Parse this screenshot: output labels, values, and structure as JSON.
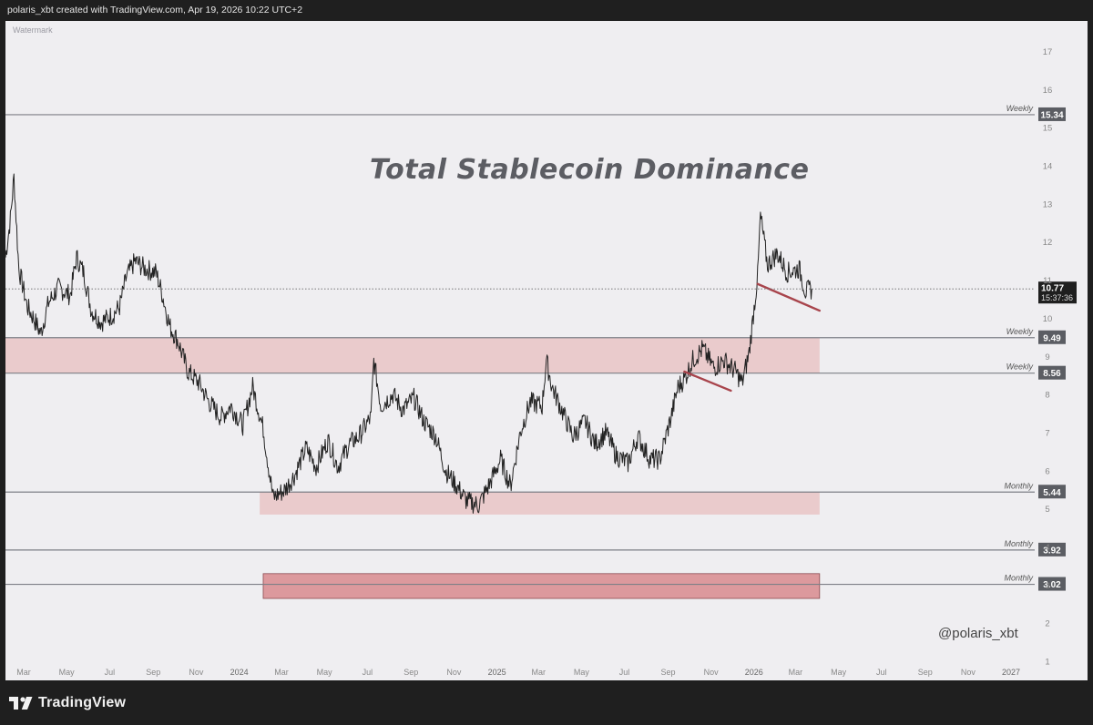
{
  "header": {
    "caption": "polaris_xbt created with TradingView.com, Apr 19, 2026 10:22 UTC+2"
  },
  "watermark": "Watermark",
  "handle": "@polaris_xbt",
  "footer": {
    "brand": "TradingView"
  },
  "colors": {
    "background": "#efeef1",
    "zone_light": "#e9c4c6",
    "zone_strong": "#d98f93",
    "trendline": "#a8444c",
    "level_line": "#7d7f86",
    "price_line": "#222222"
  },
  "chart_data": {
    "type": "line",
    "title": "Total Stablecoin Dominance",
    "x_axis": {
      "start": "2023-03-01",
      "end": "2027-02-01",
      "tick_labels": [
        "Mar",
        "May",
        "Jul",
        "Sep",
        "Nov",
        "2024",
        "Mar",
        "May",
        "Jul",
        "Sep",
        "Nov",
        "2025",
        "Mar",
        "May",
        "Jul",
        "Sep",
        "Nov",
        "2026",
        "Mar",
        "May",
        "Jul",
        "Sep",
        "Nov",
        "2027"
      ],
      "tick_dates": [
        "2023-03-01",
        "2023-05-01",
        "2023-07-01",
        "2023-09-01",
        "2023-11-01",
        "2024-01-01",
        "2024-03-01",
        "2024-05-01",
        "2024-07-01",
        "2024-09-01",
        "2024-11-01",
        "2025-01-01",
        "2025-03-01",
        "2025-05-01",
        "2025-07-01",
        "2025-09-01",
        "2025-11-01",
        "2026-01-01",
        "2026-03-01",
        "2026-05-01",
        "2026-07-01",
        "2026-09-01",
        "2026-11-01",
        "2027-01-01"
      ]
    },
    "y_axis": {
      "min": 0.5,
      "max": 17.8,
      "ticks": [
        1,
        2,
        3,
        4,
        5,
        6,
        7,
        8,
        9,
        10,
        11,
        12,
        13,
        14,
        15,
        16,
        17
      ]
    },
    "series": [
      {
        "x": [
          "2023-03-01",
          "2023-03-08",
          "2023-03-13",
          "2023-03-20",
          "2023-04-01",
          "2023-04-10",
          "2023-04-20",
          "2023-05-01",
          "2023-05-15",
          "2023-06-01",
          "2023-06-10",
          "2023-06-20",
          "2023-07-01",
          "2023-07-15",
          "2023-08-01",
          "2023-08-10",
          "2023-08-20",
          "2023-09-01",
          "2023-09-15",
          "2023-10-01",
          "2023-10-10",
          "2023-10-20",
          "2023-11-01",
          "2023-11-15",
          "2023-12-01",
          "2023-12-15",
          "2024-01-01",
          "2024-01-15",
          "2024-02-01",
          "2024-02-15",
          "2024-03-01",
          "2024-03-07",
          "2024-03-15",
          "2024-04-01",
          "2024-04-15",
          "2024-05-01",
          "2024-05-15",
          "2024-06-01",
          "2024-06-15",
          "2024-07-01",
          "2024-07-15",
          "2024-08-01",
          "2024-08-05",
          "2024-08-15",
          "2024-09-01",
          "2024-09-15",
          "2024-10-01",
          "2024-10-15",
          "2024-11-01",
          "2024-11-15",
          "2024-12-01",
          "2024-12-15",
          "2025-01-01",
          "2025-01-15",
          "2025-02-01",
          "2025-02-15",
          "2025-03-01",
          "2025-03-15",
          "2025-04-01",
          "2025-04-07",
          "2025-04-15",
          "2025-05-01",
          "2025-05-15",
          "2025-06-01",
          "2025-06-15",
          "2025-07-01",
          "2025-07-15",
          "2025-08-01",
          "2025-08-15",
          "2025-09-01",
          "2025-09-15",
          "2025-10-01",
          "2025-10-11",
          "2025-10-20",
          "2025-11-01",
          "2025-11-15",
          "2025-12-01",
          "2025-12-15",
          "2026-01-01",
          "2026-01-10",
          "2026-01-20",
          "2026-02-01",
          "2026-02-05",
          "2026-02-15",
          "2026-03-01",
          "2026-03-15",
          "2026-04-01",
          "2026-04-10",
          "2026-04-19"
        ],
        "values": [
          11.6,
          12.6,
          13.7,
          11.3,
          10.3,
          10.0,
          9.6,
          10.4,
          10.8,
          10.6,
          11.6,
          11.2,
          10.2,
          9.9,
          10.1,
          10.3,
          11.1,
          11.5,
          11.3,
          11.2,
          10.6,
          9.8,
          9.4,
          8.6,
          8.3,
          7.8,
          7.4,
          7.7,
          7.2,
          8.2,
          7.1,
          6.3,
          5.3,
          5.5,
          5.9,
          6.6,
          6.1,
          6.8,
          6.1,
          6.7,
          6.9,
          7.4,
          8.9,
          7.7,
          8.0,
          7.6,
          7.9,
          7.3,
          6.9,
          6.0,
          5.6,
          5.2,
          5.1,
          5.6,
          6.3,
          5.6,
          7.0,
          7.8,
          7.7,
          8.9,
          8.2,
          7.5,
          6.9,
          7.3,
          6.7,
          7.0,
          6.4,
          6.2,
          6.9,
          6.3,
          6.3,
          7.4,
          8.2,
          8.4,
          8.9,
          9.2,
          8.7,
          8.9,
          8.6,
          8.3,
          9.1,
          11.1,
          12.7,
          11.4,
          11.7,
          11.2,
          11.3,
          10.7,
          10.77
        ]
      }
    ],
    "levels": [
      {
        "label": "Weekly",
        "value": 15.34
      },
      {
        "label": "Weekly",
        "value": 9.49
      },
      {
        "label": "Weekly",
        "value": 8.56
      },
      {
        "label": "Monthly",
        "value": 5.44
      },
      {
        "label": "Monthly",
        "value": 3.92
      },
      {
        "label": "Monthly",
        "value": 3.02
      }
    ],
    "zones": [
      {
        "x_start": "2023-03-01",
        "x_end": "2026-04-30",
        "y_low": 8.56,
        "y_high": 9.49,
        "style": "light"
      },
      {
        "x_start": "2024-02-25",
        "x_end": "2026-04-30",
        "y_low": 4.85,
        "y_high": 5.44,
        "style": "light"
      },
      {
        "x_start": "2024-03-01",
        "x_end": "2026-04-30",
        "y_low": 2.65,
        "y_high": 3.3,
        "style": "strong"
      }
    ],
    "trendlines": [
      {
        "x1": "2025-10-20",
        "y1": 8.6,
        "x2": "2025-12-25",
        "y2": 8.1
      },
      {
        "x1": "2026-02-01",
        "y1": 10.9,
        "x2": "2026-04-30",
        "y2": 10.2
      }
    ],
    "current_price": {
      "value": 10.77,
      "countdown": "15:37:36"
    }
  }
}
